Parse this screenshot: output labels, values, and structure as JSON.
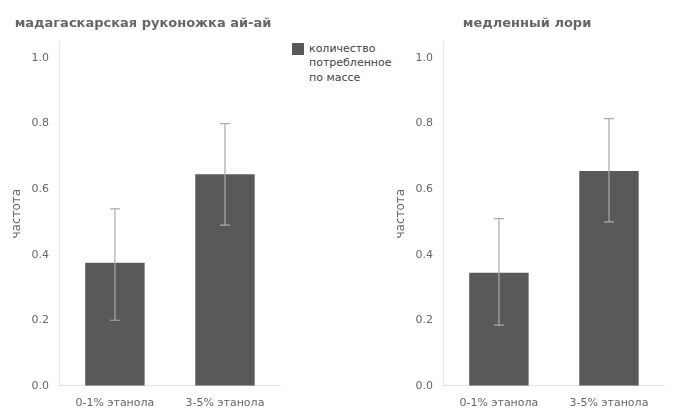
{
  "chart_data": [
    {
      "type": "bar",
      "title": "мадагаскарская руконожка ай-ай",
      "ylabel": "частота",
      "categories": [
        "0-1% этанола",
        "3-5% этанола"
      ],
      "series": [
        {
          "name": "количество\nпотребленное\nпо массе",
          "color": "#595959",
          "values": [
            0.375,
            0.645
          ],
          "errors_upper": [
            0.165,
            0.155
          ],
          "errors_lower": [
            0.175,
            0.155
          ]
        }
      ],
      "ylim": [
        0,
        1.05
      ],
      "yticks": [
        {
          "value": 0.0,
          "label": "0.0"
        },
        0.2,
        0.4,
        0.6,
        0.8,
        {
          "value": 1.0,
          "label": "1.0"
        }
      ],
      "grid": false,
      "legend": "upper right"
    },
    {
      "type": "bar",
      "title": "медленный лори",
      "ylabel": "частота",
      "categories": [
        "0-1% этанола",
        "3-5% этанола"
      ],
      "series": [
        {
          "color": "#595959",
          "values": [
            0.345,
            0.655
          ],
          "errors_upper": [
            0.165,
            0.16
          ],
          "errors_lower": [
            0.16,
            0.155
          ]
        }
      ],
      "ylim": [
        0,
        1.05
      ],
      "yticks": [
        {
          "value": 0.0,
          "label": "0.0"
        },
        0.2,
        0.4,
        0.6,
        0.8,
        {
          "value": 1.0,
          "label": "1.0"
        }
      ],
      "grid": false
    }
  ]
}
